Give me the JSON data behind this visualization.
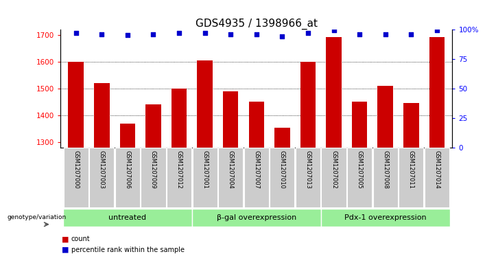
{
  "title": "GDS4935 / 1398966_at",
  "samples": [
    "GSM1207000",
    "GSM1207003",
    "GSM1207006",
    "GSM1207009",
    "GSM1207012",
    "GSM1207001",
    "GSM1207004",
    "GSM1207007",
    "GSM1207010",
    "GSM1207013",
    "GSM1207002",
    "GSM1207005",
    "GSM1207008",
    "GSM1207011",
    "GSM1207014"
  ],
  "counts": [
    1600,
    1520,
    1370,
    1440,
    1500,
    1605,
    1490,
    1450,
    1355,
    1600,
    1690,
    1450,
    1510,
    1445,
    1690
  ],
  "percentiles": [
    97,
    96,
    95,
    96,
    97,
    97,
    96,
    96,
    94,
    97,
    99,
    96,
    96,
    96,
    99
  ],
  "groups": [
    {
      "label": "untreated",
      "start": 0,
      "end": 5
    },
    {
      "label": "β-gal overexpression",
      "start": 5,
      "end": 10
    },
    {
      "label": "Pdx-1 overexpression",
      "start": 10,
      "end": 15
    }
  ],
  "bar_color": "#cc0000",
  "dot_color": "#0000cc",
  "ylim_left": [
    1280,
    1720
  ],
  "ylim_right": [
    0,
    100
  ],
  "yticks_left": [
    1300,
    1400,
    1500,
    1600,
    1700
  ],
  "yticks_right": [
    0,
    25,
    50,
    75,
    100
  ],
  "ytick_labels_right": [
    "0",
    "25",
    "50",
    "75",
    "100%"
  ],
  "grid_values": [
    1400,
    1500,
    1600
  ],
  "title_fontsize": 11,
  "tick_fontsize": 7.5,
  "group_label_fontsize": 8,
  "sample_fontsize": 6,
  "group_bg_color": "#99ee99",
  "sample_bg_color": "#cccccc",
  "legend_label_count": "count",
  "legend_label_pct": "percentile rank within the sample",
  "genotype_label": "genotype/variation"
}
